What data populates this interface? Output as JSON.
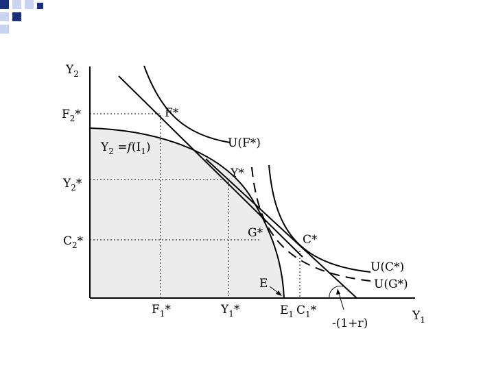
{
  "theme": {
    "corner_square_color": "#1c2f7c",
    "corner_square_light": "#c9d2ee",
    "region_fill": "#ececec",
    "line_color": "#000000"
  },
  "labels": {
    "y_axis": {
      "base": "Y",
      "sub": "2"
    },
    "x_axis": {
      "base": "Y",
      "sub": "1"
    },
    "f2_star": {
      "base": "F",
      "sub": "2",
      "tail": "*"
    },
    "y2_star": {
      "base": "Y",
      "sub": "2",
      "tail": "*"
    },
    "c2_star": {
      "base": "C",
      "sub": "2",
      "tail": "*"
    },
    "f1_star": {
      "base": "F",
      "sub": "1",
      "tail": "*"
    },
    "y1_star": {
      "base": "Y",
      "sub": "1",
      "tail": "*"
    },
    "e1": {
      "base": "E",
      "sub": "1"
    },
    "c1_star": {
      "base": "C",
      "sub": "1",
      "tail": "*"
    },
    "point_f": "F*",
    "point_y": "Y*",
    "point_g": "G*",
    "point_c": "C*",
    "point_e": "E",
    "curve_uf": "U(F*)",
    "curve_uc": "U(C*)",
    "curve_ug": "U(G*)",
    "ppf_equation": {
      "y": "Y",
      "y_sub": "2",
      "eq": " =",
      "f": "f",
      "open": "(I",
      "i_sub": "1",
      "close": ")"
    },
    "slope": "-(1+r)"
  }
}
